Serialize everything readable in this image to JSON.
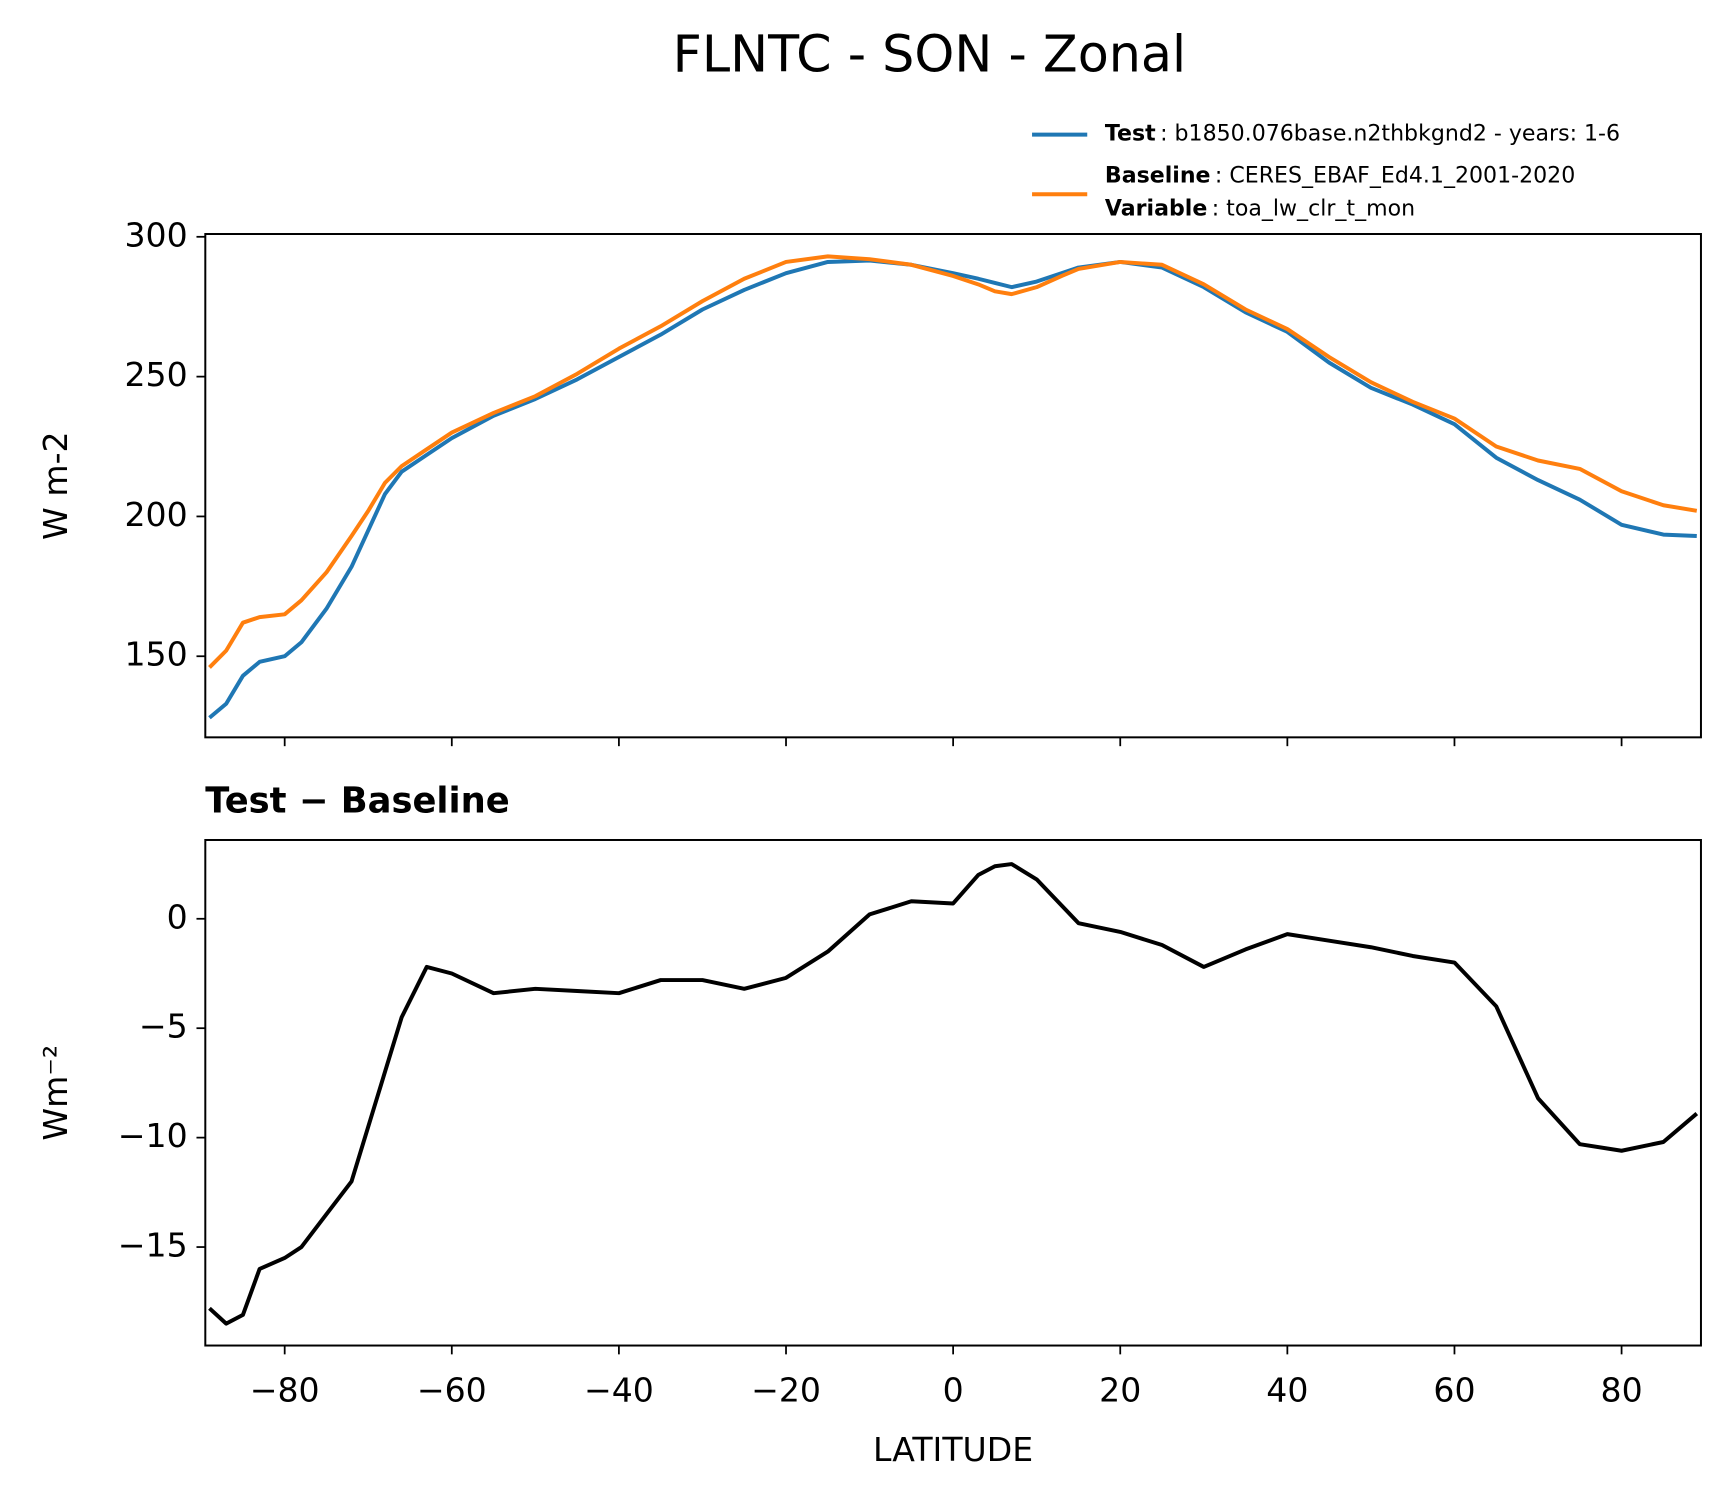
{
  "chart_data": [
    {
      "type": "line",
      "title": "FLNTC - SON - Zonal",
      "ylabel": "W m-2",
      "x": [
        -89,
        -87,
        -85,
        -83,
        -80,
        -78,
        -75,
        -72,
        -70,
        -68,
        -66,
        -63,
        -60,
        -55,
        -50,
        -45,
        -40,
        -35,
        -30,
        -25,
        -20,
        -15,
        -10,
        -5,
        0,
        3,
        5,
        7,
        10,
        13,
        15,
        20,
        25,
        30,
        35,
        40,
        45,
        50,
        55,
        60,
        65,
        70,
        75,
        80,
        85,
        89
      ],
      "series": [
        {
          "name": "Test",
          "description": ": b1850.076base.n2thbkgnd2 - years: 1-6",
          "color": "#1f77b4",
          "values": [
            128,
            133,
            143,
            148,
            150,
            155,
            167,
            182,
            195,
            208,
            216,
            222,
            228,
            236,
            242,
            249,
            257,
            265,
            274,
            281,
            287,
            291,
            291.5,
            290,
            287,
            285,
            283.5,
            282,
            284,
            287,
            289,
            291,
            289,
            282,
            273,
            266,
            255,
            246,
            240,
            233,
            221,
            213,
            206,
            197,
            193.5,
            193
          ]
        },
        {
          "name": "Baseline",
          "description": ": CERES_EBAF_Ed4.1_2001-2020",
          "color": "#ff7f0e",
          "values": [
            146,
            152,
            162,
            164,
            165,
            170,
            180,
            193,
            202,
            212,
            218,
            224,
            230,
            237,
            243,
            251,
            260,
            268,
            277,
            285,
            291,
            293,
            292,
            290,
            286,
            283,
            280.5,
            279.5,
            282,
            286,
            288.5,
            291,
            290,
            283,
            274,
            267,
            257,
            248,
            241,
            235,
            225,
            220,
            217,
            209,
            204,
            202
          ]
        }
      ],
      "variable": {
        "name": "Variable",
        "description": ": toa_lw_clr_t_mon"
      },
      "xlim": [
        -89.5,
        89.5
      ],
      "xticks": [
        -80,
        -60,
        -40,
        -20,
        0,
        20,
        40,
        60,
        80
      ],
      "ylim": [
        121,
        301
      ],
      "yticks": [
        150,
        200,
        250,
        300
      ]
    },
    {
      "type": "line",
      "title": "Test − Baseline",
      "ylabel": "Wm⁻²",
      "xlabel": "LATITUDE",
      "color": "#000000",
      "x": [
        -89,
        -87,
        -85,
        -83,
        -80,
        -78,
        -75,
        -72,
        -70,
        -68,
        -66,
        -63,
        -60,
        -55,
        -50,
        -45,
        -40,
        -35,
        -30,
        -25,
        -20,
        -15,
        -10,
        -5,
        0,
        3,
        5,
        7,
        10,
        13,
        15,
        20,
        25,
        30,
        35,
        40,
        45,
        50,
        55,
        60,
        65,
        70,
        75,
        80,
        85,
        89
      ],
      "values": [
        -17.8,
        -18.5,
        -18.1,
        -16,
        -15.5,
        -15,
        -13.5,
        -12,
        -9.5,
        -7,
        -4.5,
        -2.2,
        -2.5,
        -3.4,
        -3.2,
        -3.3,
        -3.4,
        -2.8,
        -2.8,
        -3.2,
        -2.7,
        -1.5,
        0.2,
        0.8,
        0.7,
        2,
        2.4,
        2.5,
        1.8,
        0.6,
        -0.2,
        -0.6,
        -1.2,
        -2.2,
        -1.4,
        -0.7,
        -1,
        -1.3,
        -1.7,
        -2,
        -4,
        -8.2,
        -10.3,
        -10.6,
        -10.2,
        -8.9
      ],
      "xlim": [
        -89.5,
        89.5
      ],
      "xticks": [
        {
          "value": -80,
          "label": "−80"
        },
        {
          "value": -60,
          "label": "−60"
        },
        {
          "value": -40,
          "label": "−40"
        },
        {
          "value": -20,
          "label": "−20"
        },
        0,
        20,
        40,
        60,
        80
      ],
      "ylim": [
        -19.5,
        3.6
      ],
      "yticks": [
        {
          "value": -15,
          "label": "−15"
        },
        {
          "value": -10,
          "label": "−10"
        },
        {
          "value": -5,
          "label": "−5"
        },
        0
      ]
    }
  ]
}
